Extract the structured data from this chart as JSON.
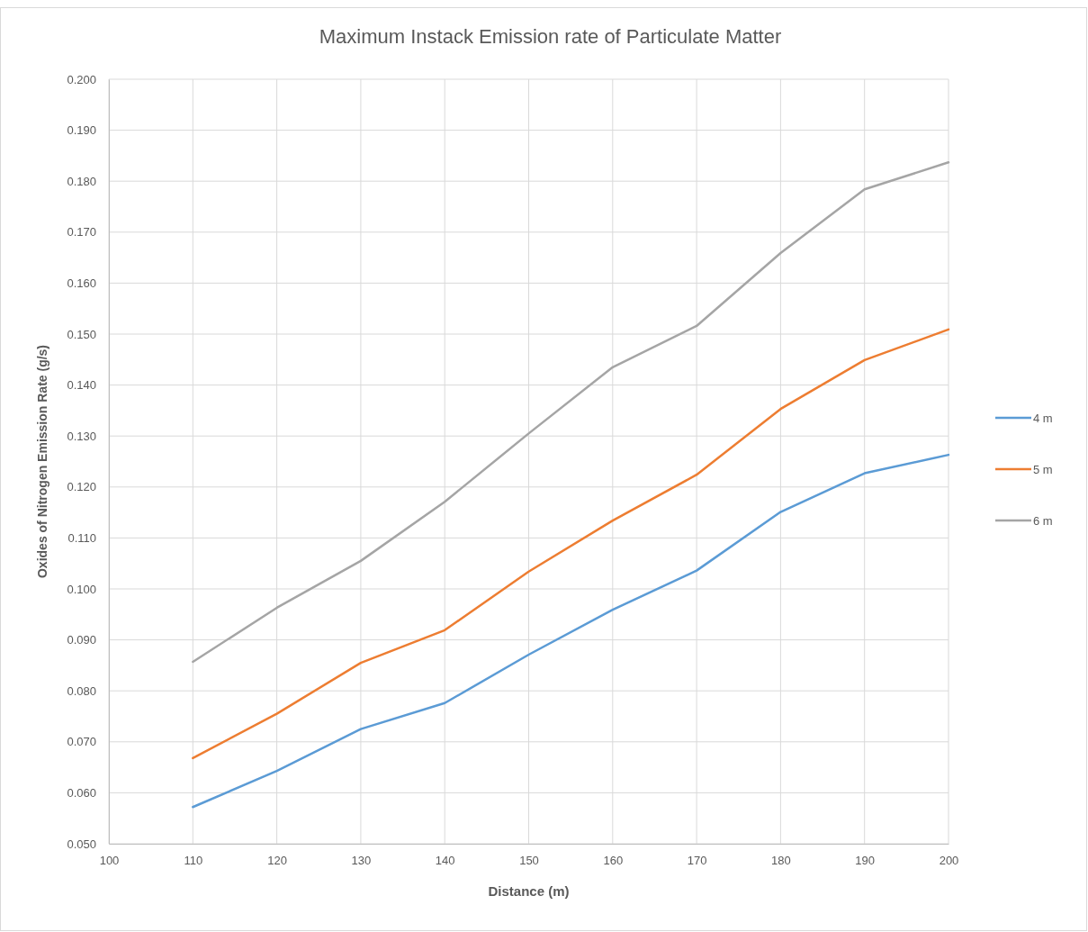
{
  "chart_data": {
    "type": "line",
    "title": "Maximum Instack Emission rate of Particulate Matter",
    "xlabel": "Distance (m)",
    "ylabel": "Oxides of Nitrogen Emission Rate (g/s)",
    "x": [
      110,
      120,
      130,
      140,
      150,
      160,
      170,
      180,
      190,
      200
    ],
    "series": [
      {
        "name": "4 m",
        "color": "#5b9bd5",
        "values": [
          0.0572,
          0.0643,
          0.0725,
          0.0776,
          0.0871,
          0.0959,
          0.1036,
          0.1151,
          0.1227,
          0.1263
        ]
      },
      {
        "name": "5 m",
        "color": "#ed7d31",
        "values": [
          0.0668,
          0.0755,
          0.0855,
          0.0919,
          0.1034,
          0.1134,
          0.1224,
          0.1353,
          0.1449,
          0.1509
        ]
      },
      {
        "name": "6 m",
        "color": "#a5a5a5",
        "values": [
          0.0857,
          0.0963,
          0.1055,
          0.1171,
          0.1305,
          0.1435,
          0.1516,
          0.1659,
          0.1784,
          0.1837
        ]
      }
    ],
    "xlim": [
      100,
      200
    ],
    "xticks": [
      100,
      110,
      120,
      130,
      140,
      150,
      160,
      170,
      180,
      190,
      200
    ],
    "ylim": [
      0.05,
      0.2
    ],
    "yticks": [
      {
        "value": 0.05,
        "label": "0.050"
      },
      {
        "value": 0.06,
        "label": "0.060"
      },
      {
        "value": 0.07,
        "label": "0.070"
      },
      {
        "value": 0.08,
        "label": "0.080"
      },
      {
        "value": 0.09,
        "label": "0.090"
      },
      {
        "value": 0.1,
        "label": "0.100"
      },
      {
        "value": 0.11,
        "label": "0.110"
      },
      {
        "value": 0.12,
        "label": "0.120"
      },
      {
        "value": 0.13,
        "label": "0.130"
      },
      {
        "value": 0.14,
        "label": "0.140"
      },
      {
        "value": 0.15,
        "label": "0.150"
      },
      {
        "value": 0.16,
        "label": "0.160"
      },
      {
        "value": 0.17,
        "label": "0.170"
      },
      {
        "value": 0.18,
        "label": "0.180"
      },
      {
        "value": 0.19,
        "label": "0.190"
      },
      {
        "value": 0.2,
        "label": "0.200"
      }
    ],
    "grid": true,
    "legend": "right",
    "marker": "none",
    "line_style": "solid"
  }
}
